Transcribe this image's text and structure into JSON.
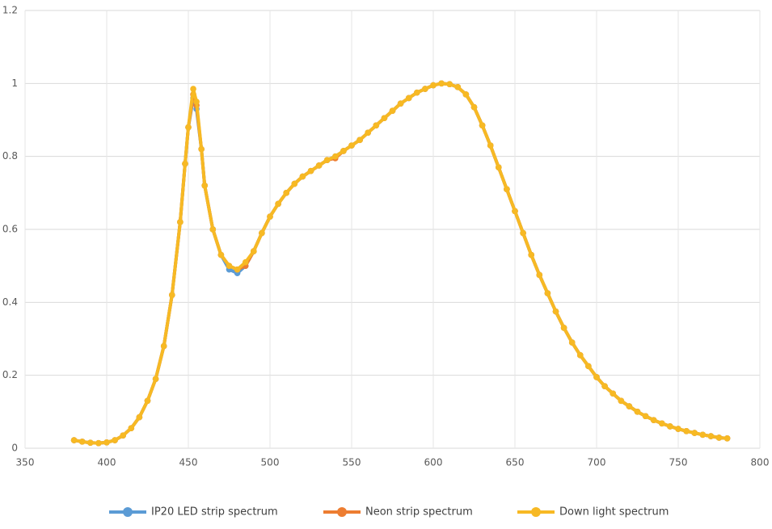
{
  "chart_data": {
    "type": "line",
    "x": [
      380,
      385,
      390,
      395,
      400,
      405,
      410,
      415,
      420,
      425,
      430,
      435,
      440,
      445,
      448,
      450,
      453,
      455,
      458,
      460,
      465,
      470,
      475,
      480,
      485,
      490,
      495,
      500,
      505,
      510,
      515,
      520,
      525,
      530,
      535,
      540,
      545,
      550,
      555,
      560,
      565,
      570,
      575,
      580,
      585,
      590,
      595,
      600,
      605,
      610,
      615,
      620,
      625,
      630,
      635,
      640,
      645,
      650,
      655,
      660,
      665,
      670,
      675,
      680,
      685,
      690,
      695,
      700,
      705,
      710,
      715,
      720,
      725,
      730,
      735,
      740,
      745,
      750,
      755,
      760,
      765,
      770,
      775,
      780
    ],
    "series": [
      {
        "name": "IP20 LED strip spectrum",
        "color": "#5b9bd5",
        "values": [
          0.022,
          0.018,
          0.015,
          0.014,
          0.016,
          0.022,
          0.035,
          0.055,
          0.085,
          0.13,
          0.19,
          0.28,
          0.42,
          0.62,
          0.78,
          0.88,
          0.96,
          0.93,
          0.82,
          0.72,
          0.6,
          0.53,
          0.49,
          0.48,
          0.5,
          0.54,
          0.59,
          0.635,
          0.67,
          0.7,
          0.725,
          0.745,
          0.76,
          0.775,
          0.79,
          0.8,
          0.815,
          0.83,
          0.845,
          0.865,
          0.885,
          0.905,
          0.925,
          0.945,
          0.96,
          0.975,
          0.985,
          0.995,
          1.0,
          0.998,
          0.99,
          0.97,
          0.935,
          0.885,
          0.83,
          0.77,
          0.71,
          0.65,
          0.59,
          0.53,
          0.475,
          0.425,
          0.375,
          0.33,
          0.29,
          0.255,
          0.225,
          0.195,
          0.17,
          0.15,
          0.13,
          0.115,
          0.1,
          0.088,
          0.077,
          0.068,
          0.06,
          0.053,
          0.047,
          0.042,
          0.037,
          0.033,
          0.029,
          0.027
        ]
      },
      {
        "name": "Neon strip spectrum",
        "color": "#ed7d31",
        "values": [
          0.022,
          0.018,
          0.015,
          0.014,
          0.016,
          0.022,
          0.035,
          0.055,
          0.085,
          0.13,
          0.19,
          0.28,
          0.42,
          0.62,
          0.78,
          0.88,
          0.97,
          0.94,
          0.82,
          0.72,
          0.6,
          0.53,
          0.5,
          0.49,
          0.5,
          0.54,
          0.59,
          0.635,
          0.67,
          0.7,
          0.725,
          0.745,
          0.76,
          0.775,
          0.79,
          0.795,
          0.815,
          0.83,
          0.845,
          0.865,
          0.885,
          0.905,
          0.925,
          0.945,
          0.96,
          0.975,
          0.985,
          0.995,
          1.0,
          0.998,
          0.99,
          0.97,
          0.935,
          0.885,
          0.83,
          0.77,
          0.71,
          0.65,
          0.59,
          0.53,
          0.475,
          0.425,
          0.375,
          0.33,
          0.29,
          0.255,
          0.225,
          0.195,
          0.17,
          0.15,
          0.13,
          0.115,
          0.1,
          0.088,
          0.077,
          0.068,
          0.06,
          0.053,
          0.047,
          0.042,
          0.037,
          0.033,
          0.029,
          0.027
        ]
      },
      {
        "name": "Down light spectrum",
        "color": "#f7b924",
        "values": [
          0.022,
          0.018,
          0.015,
          0.014,
          0.016,
          0.022,
          0.035,
          0.055,
          0.085,
          0.13,
          0.19,
          0.28,
          0.42,
          0.62,
          0.78,
          0.88,
          0.985,
          0.95,
          0.82,
          0.72,
          0.6,
          0.53,
          0.5,
          0.49,
          0.51,
          0.54,
          0.59,
          0.635,
          0.67,
          0.7,
          0.725,
          0.745,
          0.76,
          0.775,
          0.79,
          0.8,
          0.815,
          0.83,
          0.845,
          0.865,
          0.885,
          0.905,
          0.925,
          0.945,
          0.96,
          0.975,
          0.985,
          0.995,
          1.0,
          0.998,
          0.99,
          0.97,
          0.935,
          0.885,
          0.83,
          0.77,
          0.71,
          0.65,
          0.59,
          0.53,
          0.475,
          0.425,
          0.375,
          0.33,
          0.29,
          0.255,
          0.225,
          0.195,
          0.17,
          0.15,
          0.13,
          0.115,
          0.1,
          0.088,
          0.077,
          0.068,
          0.06,
          0.053,
          0.047,
          0.042,
          0.037,
          0.033,
          0.029,
          0.027
        ]
      }
    ],
    "xlim": [
      350,
      800
    ],
    "xticks": [
      350,
      400,
      450,
      500,
      550,
      600,
      650,
      700,
      750,
      800
    ],
    "ylim": [
      0,
      1.2
    ],
    "yticks": [
      0,
      0.2,
      0.4,
      0.6,
      0.8,
      1,
      1.2
    ],
    "grid": true
  }
}
